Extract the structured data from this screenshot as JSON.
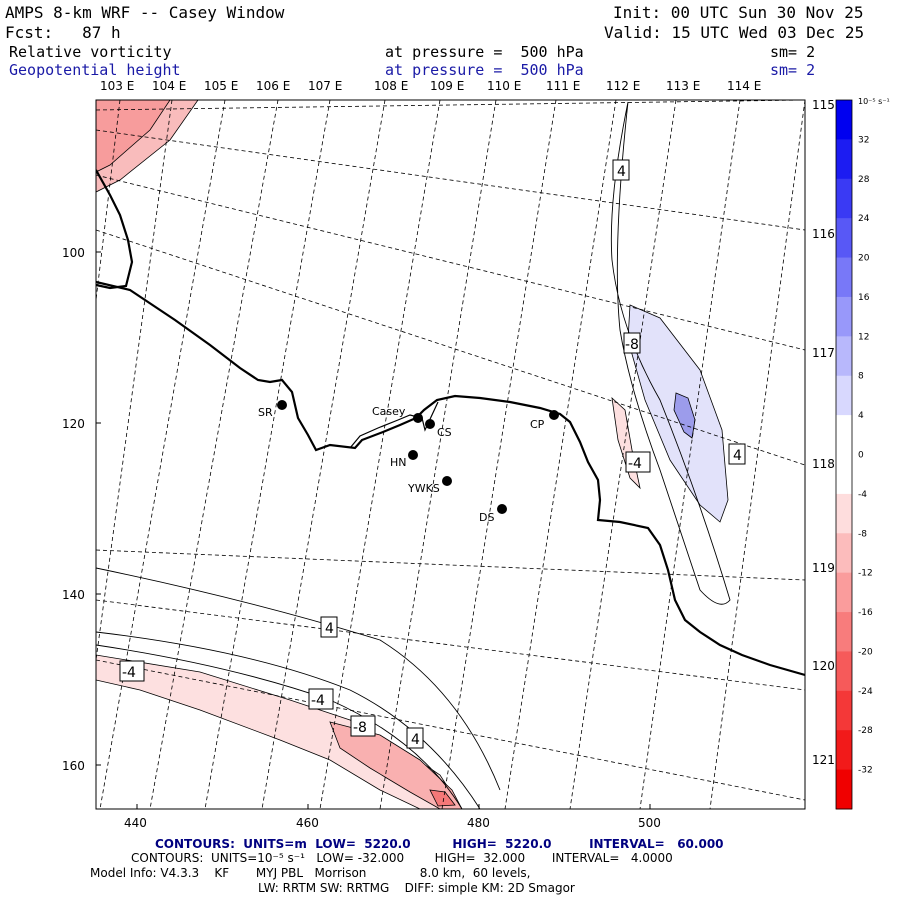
{
  "header": {
    "title": "AMPS 8-km WRF -- Casey Window",
    "init": "Init: 00 UTC Sun 30 Nov 25",
    "fcst": "Fcst:   87 h",
    "valid": "Valid: 15 UTC Wed 03 Dec 25",
    "field1": {
      "name": "Relative vorticity",
      "level": "at pressure =  500 hPa",
      "sm": "sm= 2"
    },
    "field2": {
      "name": "Geopotential height",
      "level": "at pressure =  500 hPa",
      "sm": "sm= 2"
    }
  },
  "lon_labels": [
    "103 E",
    "104 E",
    "105 E",
    "106 E",
    "107 E",
    "108 E",
    "109 E",
    "110 E",
    "111 E",
    "112 E",
    "113 E",
    "114 E"
  ],
  "lat_labels_right": [
    "115 E",
    "116 E",
    "117 E",
    "118 E",
    "119 E",
    "120 E",
    "121 E"
  ],
  "x_ticks": [
    440,
    460,
    480,
    500
  ],
  "y_ticks": [
    100,
    120,
    140,
    160
  ],
  "stations": [
    {
      "name": "SR"
    },
    {
      "name": "Casey"
    },
    {
      "name": "CS"
    },
    {
      "name": "CP"
    },
    {
      "name": "HN"
    },
    {
      "name": "YWKS"
    },
    {
      "name": "DS"
    }
  ],
  "contour_labels": [
    "4",
    "-8",
    "-4",
    "4",
    "4",
    "-4",
    "-4",
    "-8",
    "4"
  ],
  "colorbar": {
    "unit": "10⁻⁵ s⁻¹",
    "ticks": [
      "32",
      "28",
      "24",
      "20",
      "16",
      "12",
      "8",
      "4",
      "0",
      "-4",
      "-8",
      "-12",
      "-16",
      "-20",
      "-24",
      "-28",
      "-32"
    ],
    "colors": [
      "#0000f0",
      "#1c1cf2",
      "#3a3af4",
      "#5858f6",
      "#7878f8",
      "#9898fa",
      "#b8b8fc",
      "#d8d8fe",
      "#ffffff",
      "#ffffff",
      "#fedddd",
      "#fcbcbc",
      "#fa9c9c",
      "#f87c7c",
      "#f65a5a",
      "#f43838",
      "#f21a1a",
      "#f00000"
    ]
  },
  "footer": {
    "line1": "CONTOURS:  UNITS=m  LOW=  5220.0          HIGH=  5220.0         INTERVAL=   60.000",
    "line2": "CONTOURS:  UNITS=10⁻⁵ s⁻¹   LOW= -32.000        HIGH=  32.000       INTERVAL=   4.0000",
    "line3": "Model Info: V4.3.3    KF       MYJ PBL   Morrison              8.0 km,  60 levels,",
    "line4": "LW: RRTM SW: RRTMG    DIFF: simple KM: 2D Smagor"
  }
}
